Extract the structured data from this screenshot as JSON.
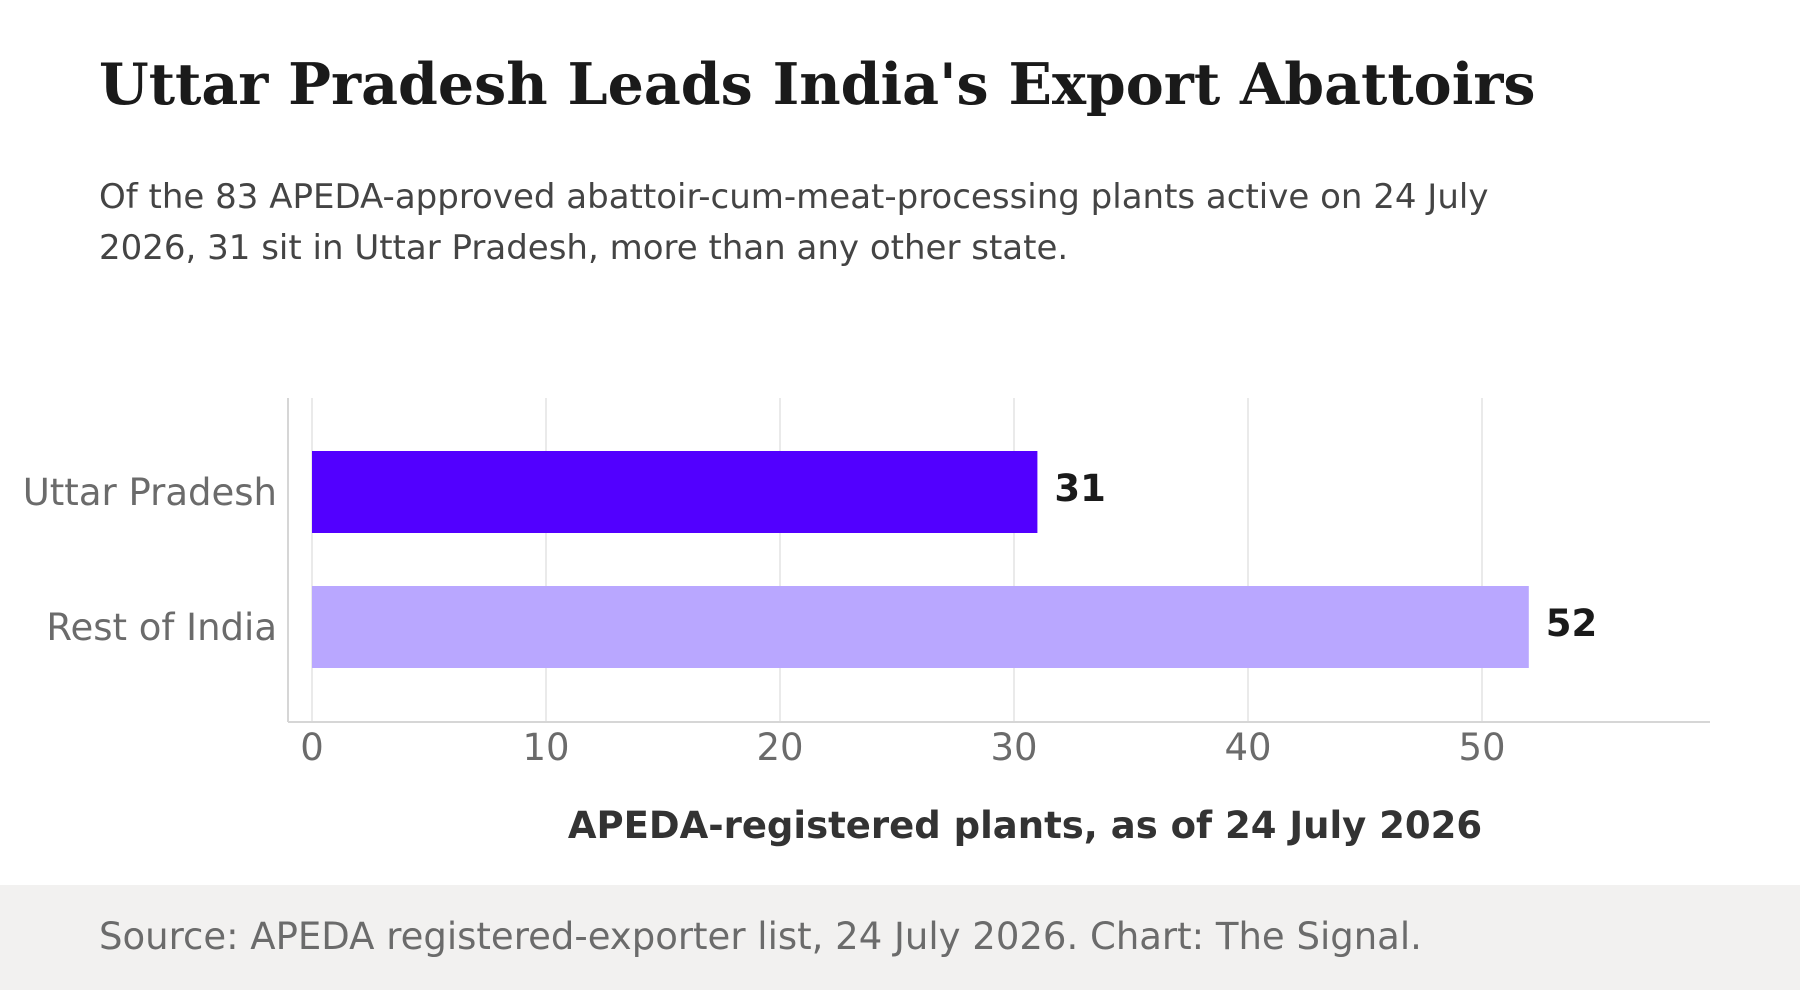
{
  "title": "Uttar Pradesh Leads India's Export Abattoirs",
  "subtitle": "Of the 83 APEDA-approved abattoir-cum-meat-processing plants active on 24 July 2026, 31 sit in Uttar Pradesh, more than any other state.",
  "source": "Source: APEDA registered-exporter list, 24 July 2026. Chart: The Signal.",
  "chart_data": {
    "type": "bar",
    "orientation": "horizontal",
    "categories": [
      "Uttar Pradesh",
      "Rest of India"
    ],
    "values": [
      31,
      52
    ],
    "value_labels": [
      "31",
      "52"
    ],
    "colors": [
      "#5200ff",
      "#b9a7ff"
    ],
    "xlabel": "APEDA-registered plants, as of 24 July 2026",
    "ylabel": "",
    "xlim": [
      0,
      60
    ],
    "xticks": [
      0,
      10,
      20,
      30,
      40,
      50
    ],
    "xtick_labels": [
      "0",
      "10",
      "20",
      "30",
      "40",
      "50"
    ],
    "grid": true,
    "legend": "none"
  }
}
